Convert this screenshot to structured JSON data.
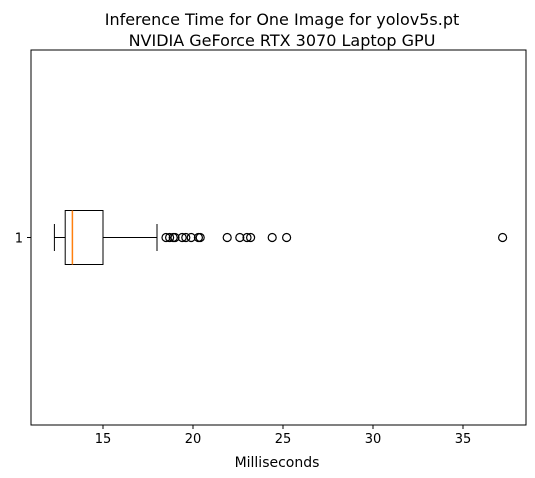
{
  "chart_data": {
    "type": "boxplot",
    "orientation": "horizontal",
    "title": "Inference Time for One Image for yolov5s.pt",
    "subtitle": "NVIDIA GeForce RTX 3070 Laptop GPU",
    "xlabel": "Milliseconds",
    "ylabel": "",
    "xlim": [
      11.0,
      38.5
    ],
    "x_ticks": [
      15,
      20,
      25,
      30,
      35
    ],
    "y_ticks": [
      "1"
    ],
    "grid": false,
    "legend": "none",
    "box": {
      "category": "1",
      "whisker_low": 12.3,
      "q1": 12.9,
      "median": 13.3,
      "q3": 15.0,
      "whisker_high": 18.0,
      "outliers": [
        18.5,
        18.7,
        18.9,
        19.0,
        19.4,
        19.6,
        19.9,
        20.3,
        20.4,
        21.9,
        22.6,
        23.0,
        23.2,
        24.4,
        25.2,
        37.2
      ]
    },
    "colors": {
      "box": "#000000",
      "median": "#ff7f0e",
      "outlier_marker": "#000000"
    }
  }
}
